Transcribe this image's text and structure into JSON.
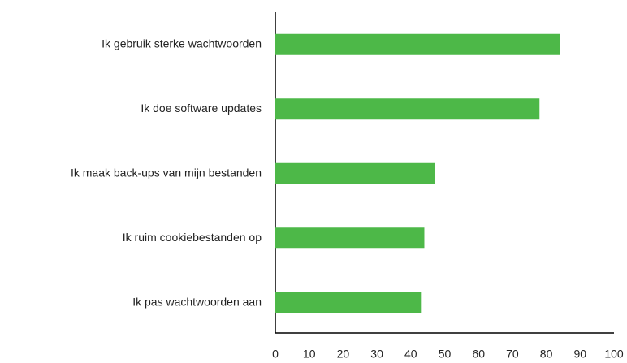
{
  "chart_data": {
    "type": "bar",
    "orientation": "horizontal",
    "categories": [
      "Ik gebruik sterke wachtwoorden",
      "Ik doe software updates",
      "Ik maak back-ups van mijn bestanden",
      "Ik ruim cookiebestanden op",
      "Ik pas wachtwoorden aan"
    ],
    "values": [
      84,
      78,
      47,
      44,
      43
    ],
    "color": "#4db848",
    "xlim": [
      0,
      100
    ],
    "xticks": [
      0,
      10,
      20,
      30,
      40,
      50,
      60,
      70,
      80,
      90,
      100
    ],
    "grid": false
  }
}
